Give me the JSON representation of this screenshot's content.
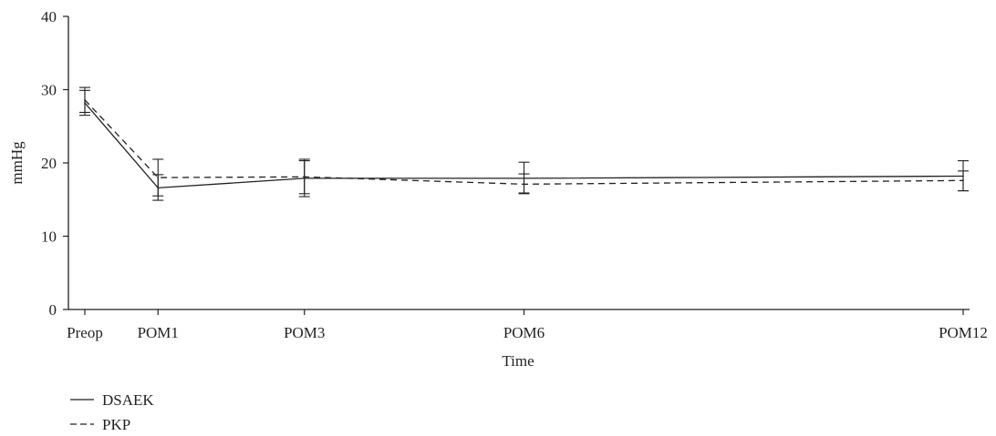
{
  "chart_data": {
    "type": "line",
    "title": "",
    "xlabel": "Time",
    "ylabel": "mmHg",
    "categories": [
      "Preop",
      "POM1",
      "POM3",
      "POM6",
      "POM12"
    ],
    "x": [
      0,
      1,
      3,
      6,
      12
    ],
    "ylim": [
      0,
      40
    ],
    "yticks": [
      0,
      10,
      20,
      30,
      40
    ],
    "grid": false,
    "legend_position": "bottom-left",
    "series": [
      {
        "name": "DSAEK",
        "style": "solid",
        "color": "#231f20",
        "values": [
          28.2,
          16.6,
          17.9,
          17.9,
          18.2
        ],
        "err_low": [
          26.5,
          14.9,
          15.4,
          15.8,
          16.2
        ],
        "err_high": [
          29.9,
          18.4,
          20.5,
          20.1,
          20.3
        ]
      },
      {
        "name": "PKP",
        "style": "dashed",
        "color": "#231f20",
        "values": [
          28.6,
          18.0,
          18.1,
          17.1,
          17.6
        ],
        "err_low": [
          26.9,
          15.5,
          15.8,
          15.9,
          16.2
        ],
        "err_high": [
          30.3,
          20.5,
          20.3,
          18.5,
          18.9
        ]
      }
    ]
  }
}
